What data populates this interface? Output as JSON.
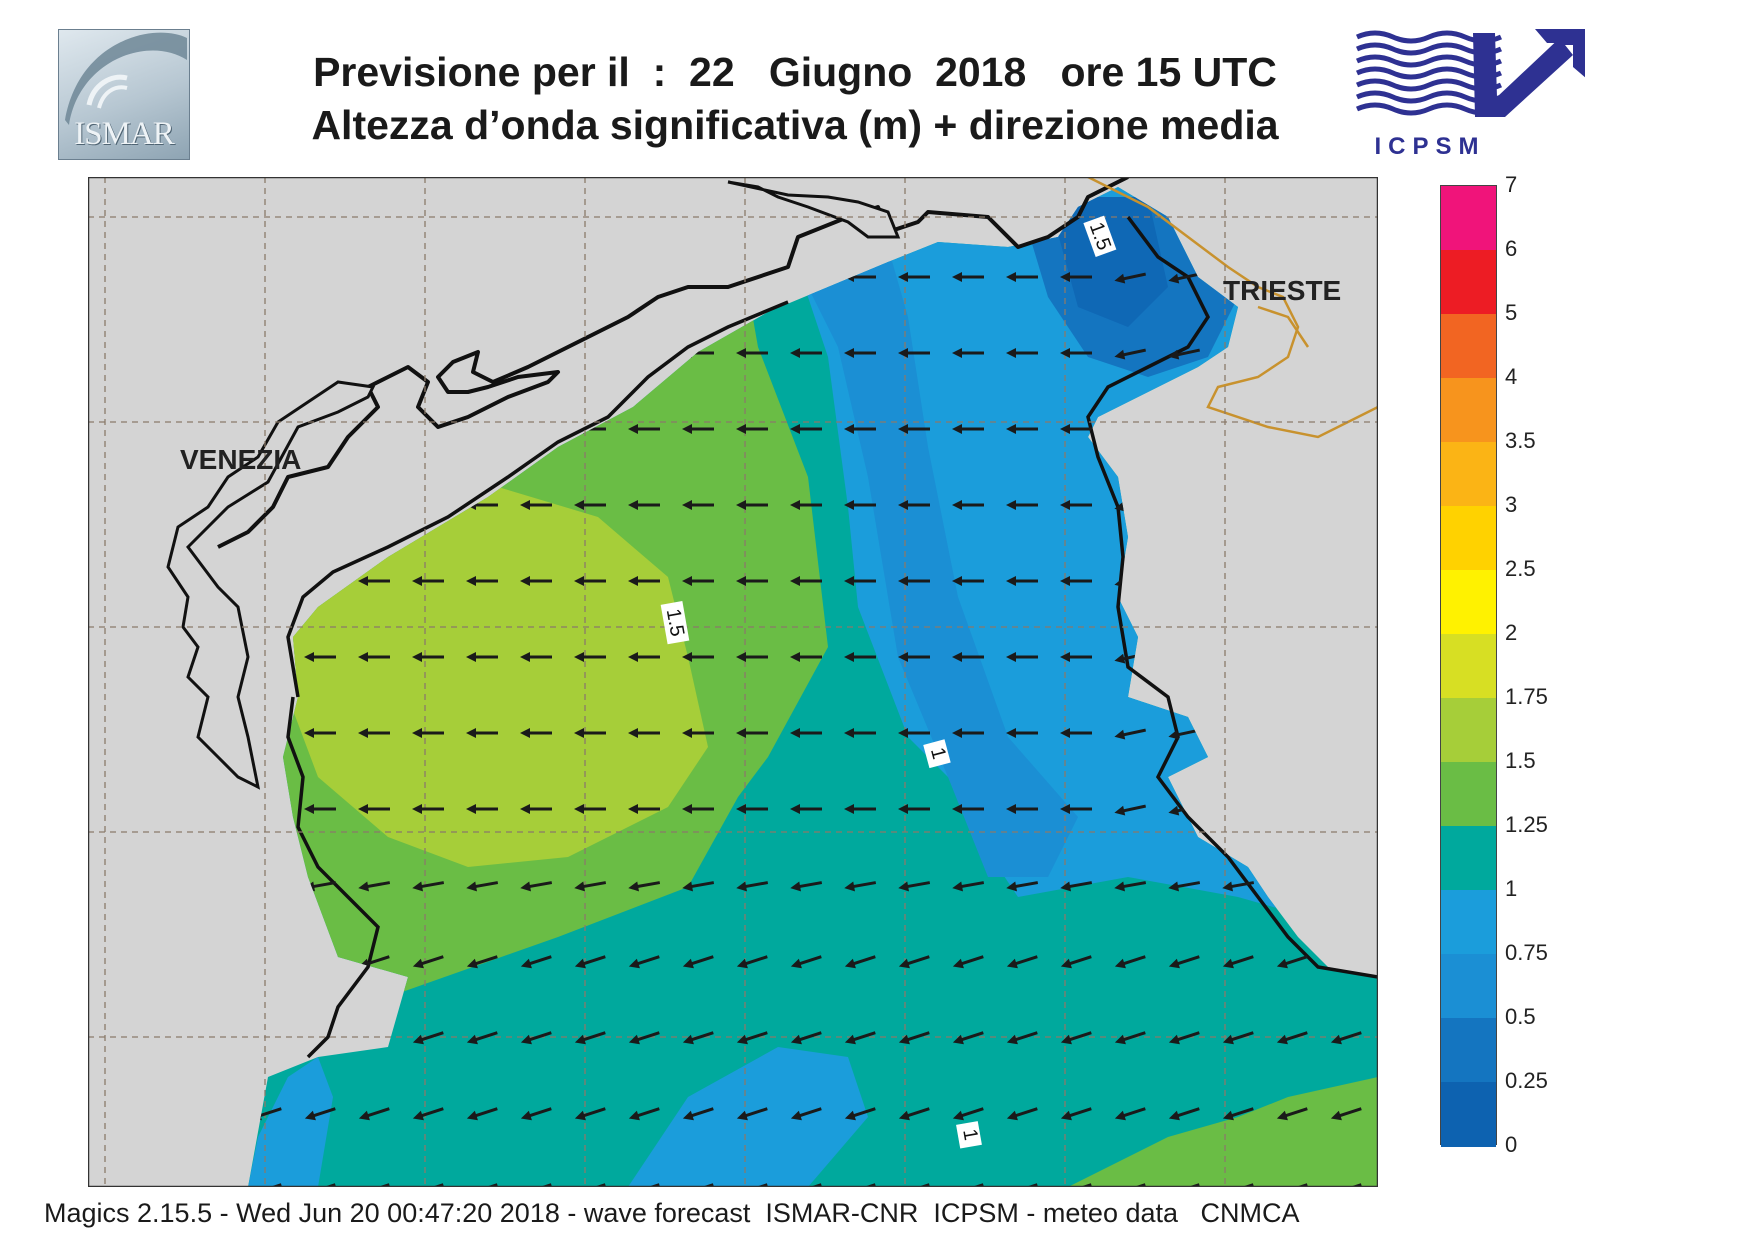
{
  "header": {
    "title_line1": "Previsione per il  :  22   Giugno  2018   ore 15 UTC",
    "title_line2": "Altezza d’onda significativa (m) + direzione media"
  },
  "logos": {
    "left": {
      "name": "ismar-logo",
      "text": "ISMAR"
    },
    "right": {
      "name": "icpsm-logo",
      "text": "ICPSM",
      "color": "#2e3192"
    }
  },
  "map": {
    "place_labels": [
      "VENEZIA",
      "TRIESTE"
    ],
    "contour_labels": [
      "1.5",
      "1.5",
      "1",
      "1"
    ],
    "colors": {
      "land": "#d4d4d4",
      "coast": "#111111",
      "border": "#c8922e",
      "grid": "#8a7a6a",
      "arrow": "#1a1a1a"
    },
    "mean_wave_direction": "westward (arrows point W / WSW)"
  },
  "colorbar": {
    "labels": [
      "7",
      "6",
      "5",
      "4",
      "3.5",
      "3",
      "2.5",
      "2",
      "1.75",
      "1.5",
      "1.25",
      "1",
      "0.75",
      "0.5",
      "0.25",
      "0"
    ],
    "colors_top_to_bottom": [
      "#f0147a",
      "#ed1c24",
      "#f26522",
      "#f7941d",
      "#fbb415",
      "#ffd200",
      "#fff200",
      "#d7df23",
      "#a6ce39",
      "#6abd45",
      "#00a99d",
      "#1b9ddb",
      "#1b8fd4",
      "#1475c0",
      "#0d62b0"
    ]
  },
  "footer": {
    "text": "Magics 2.15.5 - Wed Jun 20 00:47:20 2018 - wave forecast  ISMAR-CNR  ICPSM - meteo data   CNMCA"
  }
}
